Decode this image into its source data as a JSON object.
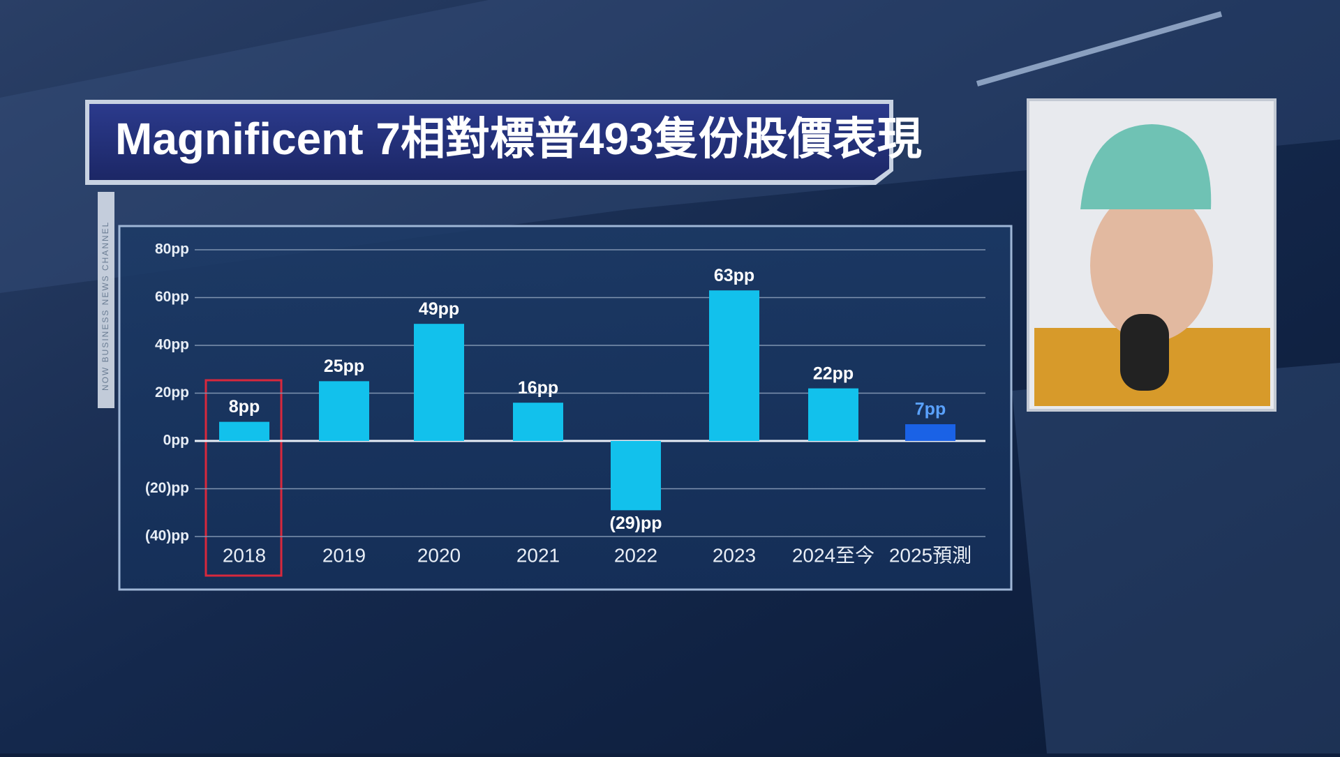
{
  "watermark": "NOW BUSINESS NEWS CHANNEL",
  "chart_data": {
    "type": "bar",
    "title": "Magnificent 7相對標普493隻份股價表現",
    "categories": [
      "2018",
      "2019",
      "2020",
      "2021",
      "2022",
      "2023",
      "2024至今",
      "2025預測"
    ],
    "values": [
      8,
      25,
      49,
      16,
      -29,
      63,
      22,
      7
    ],
    "value_labels": [
      "8pp",
      "25pp",
      "49pp",
      "16pp",
      "(29)pp",
      "63pp",
      "22pp",
      "7pp"
    ],
    "colors": [
      "#12c1ec",
      "#12c1ec",
      "#12c1ec",
      "#12c1ec",
      "#12c1ec",
      "#12c1ec",
      "#12c1ec",
      "#1a62e6"
    ],
    "value_label_colors": [
      "#ffffff",
      "#ffffff",
      "#ffffff",
      "#ffffff",
      "#ffffff",
      "#ffffff",
      "#ffffff",
      "#5aa2ff"
    ],
    "ylim": [
      -40,
      80
    ],
    "yticks": [
      {
        "value": -40,
        "label": "(40)pp"
      },
      {
        "value": -20,
        "label": "(20)pp"
      },
      {
        "value": 0,
        "label": "0pp"
      },
      {
        "value": 20,
        "label": "20pp"
      },
      {
        "value": 40,
        "label": "40pp"
      },
      {
        "value": 60,
        "label": "60pp"
      },
      {
        "value": 80,
        "label": "80pp"
      }
    ],
    "grid": true
  }
}
